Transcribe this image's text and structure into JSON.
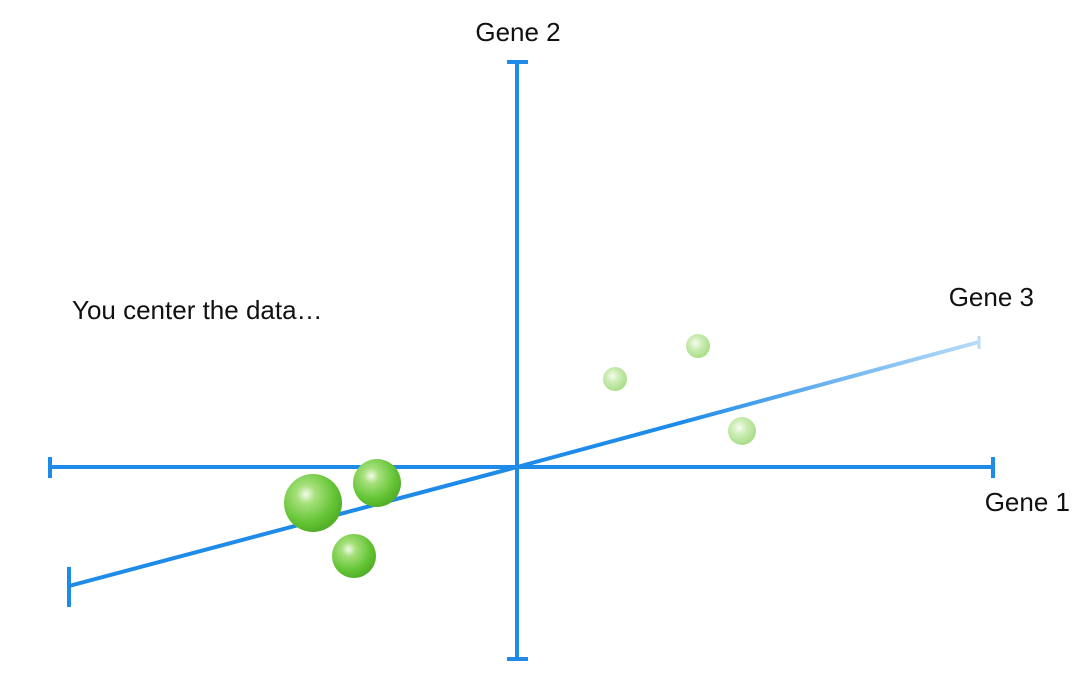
{
  "axes": {
    "x_label": "Gene 1",
    "y_label": "Gene 2",
    "z_label": "Gene 3"
  },
  "caption": "You center the data…",
  "colors": {
    "axis": "#1e8be8",
    "axis_far": "#b9dcf7",
    "point": "#6ccf3c",
    "point_light": "#c6ecb0"
  },
  "points": [
    {
      "name": "near-large",
      "depth": "near"
    },
    {
      "name": "near-medium-1",
      "depth": "near"
    },
    {
      "name": "near-medium-2",
      "depth": "near"
    },
    {
      "name": "far-small-1",
      "depth": "far"
    },
    {
      "name": "far-small-2",
      "depth": "far"
    },
    {
      "name": "far-small-3",
      "depth": "far"
    }
  ]
}
